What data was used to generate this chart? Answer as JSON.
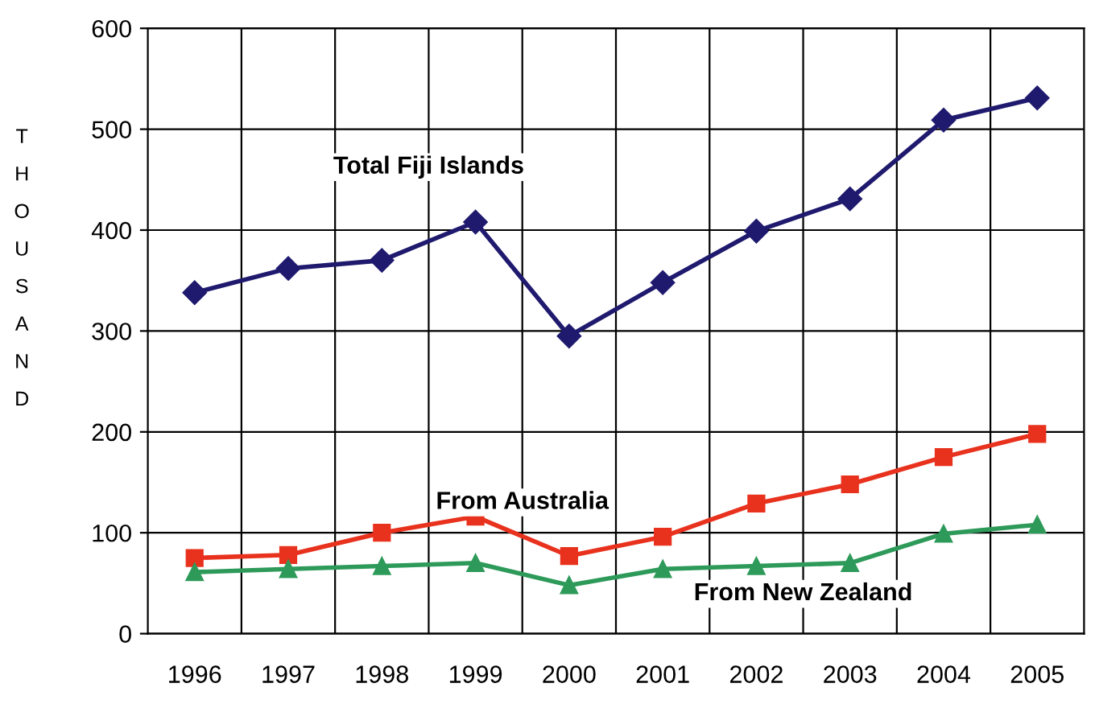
{
  "chart_data": {
    "type": "line",
    "ylabel": "THOUSAND",
    "categories": [
      "1996",
      "1997",
      "1998",
      "1999",
      "2000",
      "2001",
      "2002",
      "2003",
      "2004",
      "2005"
    ],
    "series": [
      {
        "name": "Total Fiji Islands",
        "color": "#1f1a6e",
        "marker": "diamond",
        "values": [
          338,
          362,
          370,
          408,
          295,
          348,
          399,
          431,
          509,
          531
        ]
      },
      {
        "name": "From Australia",
        "color": "#e8321e",
        "marker": "square",
        "values": [
          75,
          78,
          100,
          116,
          77,
          96,
          129,
          148,
          175,
          198
        ]
      },
      {
        "name": "From New Zealand",
        "color": "#2e9a5a",
        "marker": "triangle",
        "values": [
          61,
          64,
          67,
          70,
          48,
          64,
          67,
          70,
          99,
          108
        ]
      }
    ],
    "ylim": [
      0,
      600
    ],
    "yticks": [
      0,
      100,
      200,
      300,
      400,
      500,
      600
    ],
    "grid": true,
    "legend": false
  }
}
